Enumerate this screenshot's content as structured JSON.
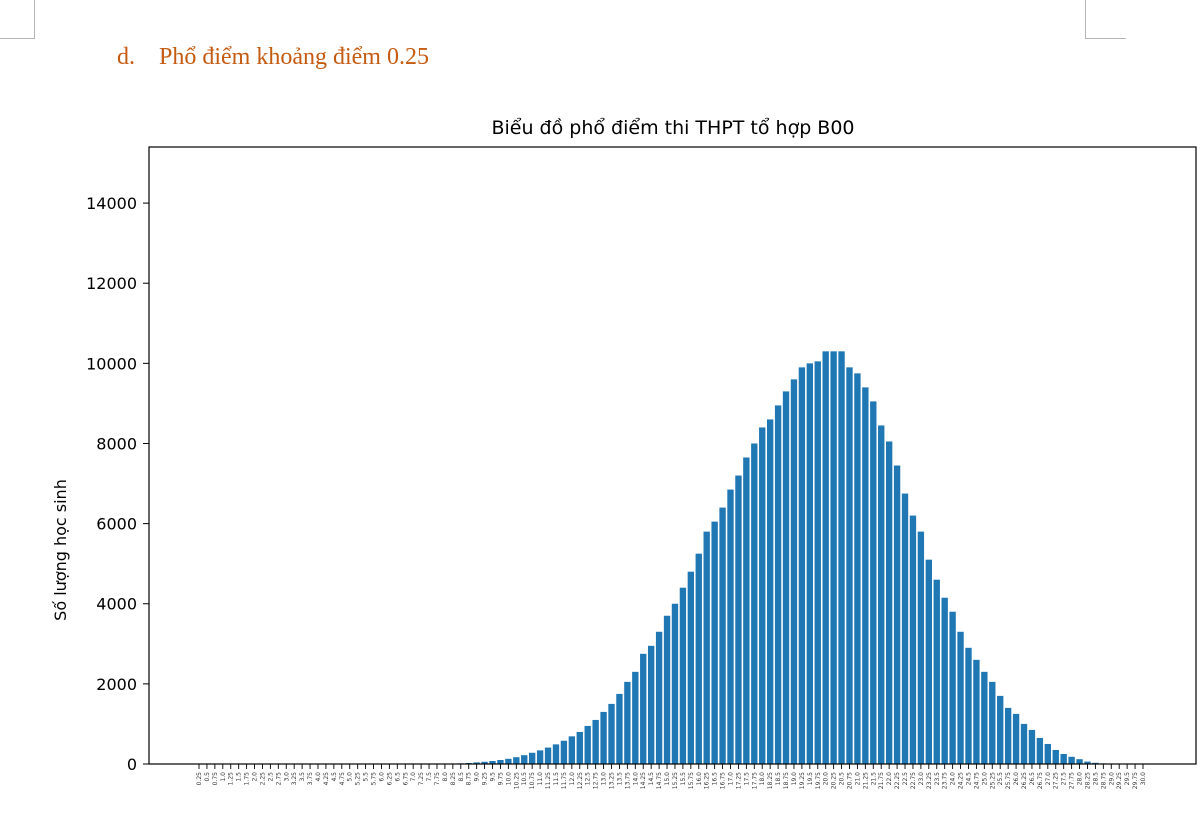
{
  "section": {
    "number": "d.",
    "title": "Phổ điểm khoảng điểm 0.25"
  },
  "colors": {
    "bar": "#1f77b4",
    "heading": "#c55a11"
  },
  "chart_data": {
    "type": "bar",
    "title": "Biểu đồ phổ điểm thi THPT tổ hợp B00",
    "xlabel": "",
    "ylabel": "Số lượng học sinh",
    "ylim": [
      0,
      15400
    ],
    "yticks": [
      0,
      2000,
      4000,
      6000,
      8000,
      10000,
      12000,
      14000
    ],
    "grid": false,
    "categories": [
      "0.25",
      "0.5",
      "0.75",
      "1.0",
      "1.25",
      "1.5",
      "1.75",
      "2.0",
      "2.25",
      "2.5",
      "2.75",
      "3.0",
      "3.25",
      "3.5",
      "3.75",
      "4.0",
      "4.25",
      "4.5",
      "4.75",
      "5.0",
      "5.25",
      "5.5",
      "5.75",
      "6.0",
      "6.25",
      "6.5",
      "6.75",
      "7.0",
      "7.25",
      "7.5",
      "7.75",
      "8.0",
      "8.25",
      "8.5",
      "8.75",
      "9.0",
      "9.25",
      "9.5",
      "9.75",
      "10.0",
      "10.25",
      "10.5",
      "10.75",
      "11.0",
      "11.25",
      "11.5",
      "11.75",
      "12.0",
      "12.25",
      "12.5",
      "12.75",
      "13.0",
      "13.25",
      "13.5",
      "13.75",
      "14.0",
      "14.25",
      "14.5",
      "14.75",
      "15.0",
      "15.25",
      "15.5",
      "15.75",
      "16.0",
      "16.25",
      "16.5",
      "16.75",
      "17.0",
      "17.25",
      "17.5",
      "17.75",
      "18.0",
      "18.25",
      "18.5",
      "18.75",
      "19.0",
      "19.25",
      "19.5",
      "19.75",
      "20.0",
      "20.25",
      "20.5",
      "20.75",
      "21.0",
      "21.25",
      "21.5",
      "21.75",
      "22.0",
      "22.25",
      "22.5",
      "22.75",
      "23.0",
      "23.25",
      "23.5",
      "23.75",
      "24.0",
      "24.25",
      "24.5",
      "24.75",
      "25.0",
      "25.25",
      "25.5",
      "25.75",
      "26.0",
      "26.25",
      "26.5",
      "26.75",
      "27.0",
      "27.25",
      "27.5",
      "27.75",
      "28.0",
      "28.25",
      "28.5",
      "28.75",
      "29.0",
      "29.25",
      "29.5",
      "29.75",
      "30.0"
    ],
    "values": [
      0,
      0,
      0,
      0,
      0,
      0,
      0,
      0,
      0,
      0,
      0,
      0,
      0,
      0,
      0,
      0,
      0,
      0,
      0,
      0,
      0,
      0,
      0,
      0,
      0,
      0,
      0,
      0,
      0,
      0,
      0,
      5,
      10,
      15,
      25,
      40,
      55,
      75,
      100,
      130,
      170,
      220,
      280,
      340,
      410,
      490,
      580,
      690,
      800,
      950,
      1100,
      1300,
      1500,
      1750,
      2050,
      2300,
      2750,
      2950,
      3300,
      3700,
      4000,
      4400,
      4800,
      5250,
      5800,
      6050,
      6400,
      6850,
      7200,
      7650,
      8000,
      8400,
      8600,
      8950,
      9300,
      9600,
      9900,
      10000,
      10050,
      10300,
      10300,
      10300,
      9900,
      9750,
      9400,
      9050,
      8450,
      8050,
      7450,
      6750,
      6200,
      5800,
      5100,
      4600,
      4150,
      3800,
      3300,
      2900,
      2600,
      2300,
      2050,
      1700,
      1400,
      1250,
      1000,
      850,
      650,
      500,
      350,
      250,
      180,
      120,
      60,
      30,
      15,
      5,
      0,
      0,
      0,
      0
    ]
  }
}
